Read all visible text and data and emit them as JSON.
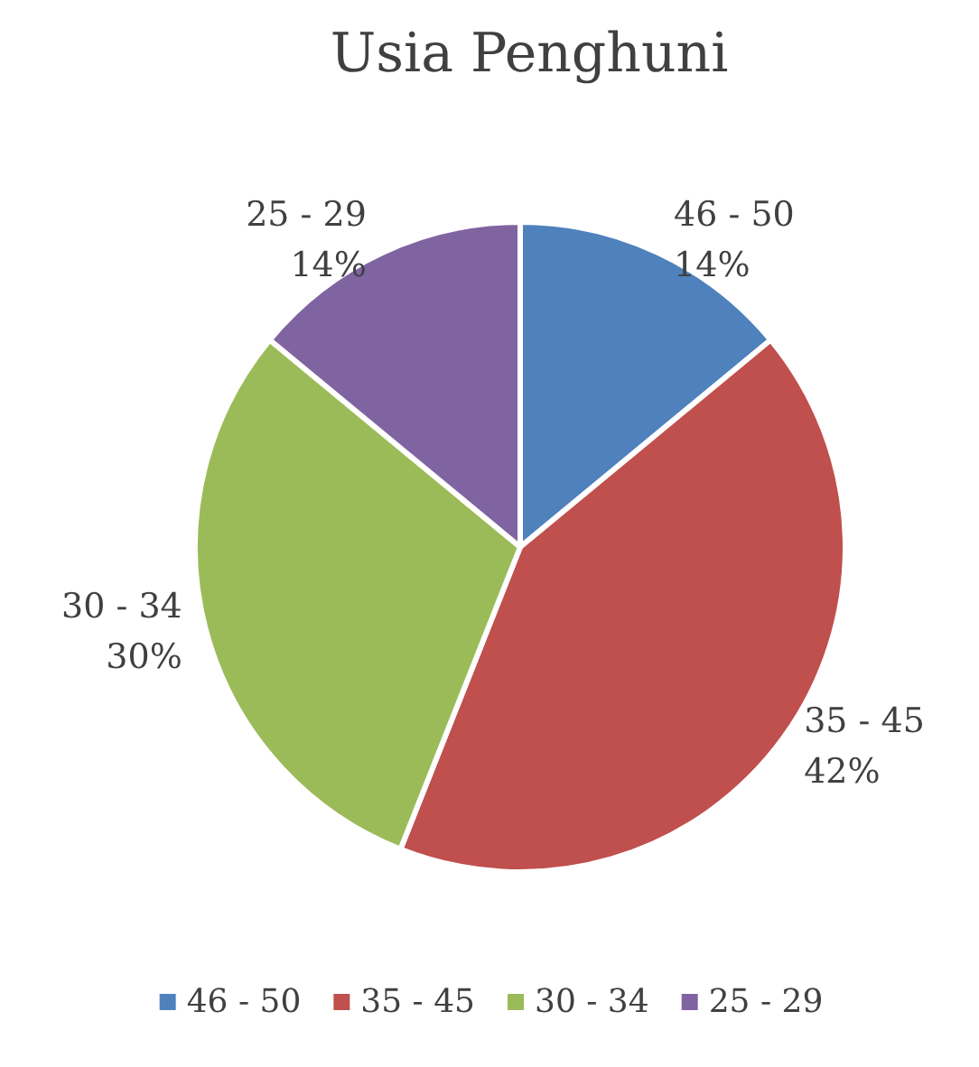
{
  "chart_data": {
    "type": "pie",
    "title": "Usia Penghuni",
    "categories": [
      "46 - 50",
      "35 - 45",
      "30 - 34",
      "25 - 29"
    ],
    "values": [
      14,
      42,
      30,
      14
    ],
    "value_labels": [
      "14%",
      "42%",
      "30%",
      "14%"
    ],
    "colors": [
      "#4f81bd",
      "#c0504d",
      "#9bbb59",
      "#8064a2"
    ],
    "legend": "bottom"
  }
}
